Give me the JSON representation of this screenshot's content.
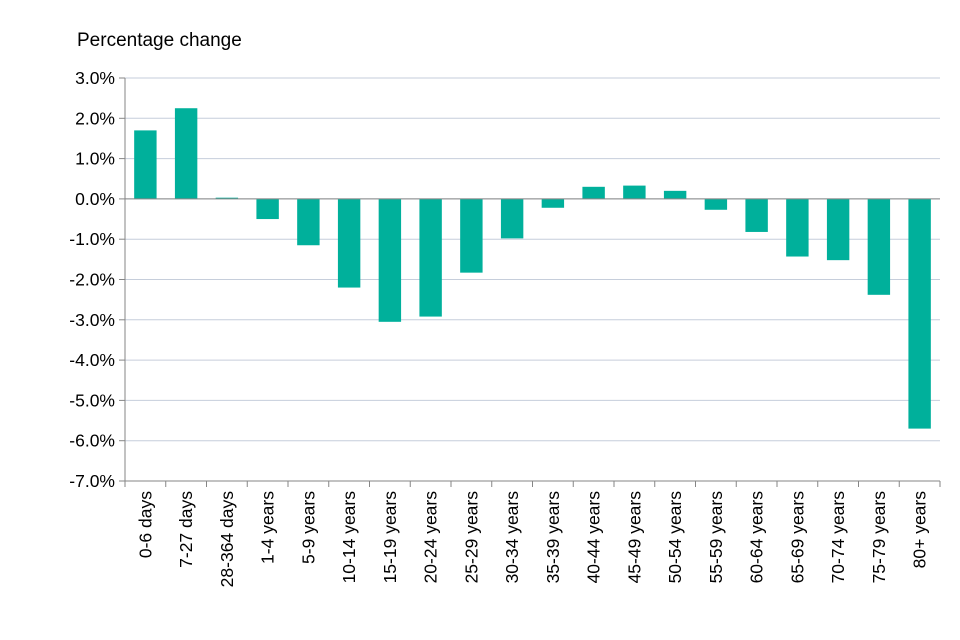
{
  "chart_data": {
    "type": "bar",
    "title": "",
    "ylabel": "Percentage change",
    "xlabel": "",
    "ylim": [
      -7.0,
      3.0
    ],
    "ytick_step": 1.0,
    "ytick_labels": [
      "3.0%",
      "2.0%",
      "1.0%",
      "0.0%",
      "-1.0%",
      "-2.0%",
      "-3.0%",
      "-4.0%",
      "-5.0%",
      "-6.0%",
      "-7.0%"
    ],
    "grid": true,
    "bar_color": "#00b09b",
    "categories": [
      "0-6 days",
      "7-27 days",
      "28-364 days",
      "1-4 years",
      "5-9 years",
      "10-14 years",
      "15-19 years",
      "20-24 years",
      "25-29 years",
      "30-34 years",
      "35-39 years",
      "40-44 years",
      "45-49 years",
      "50-54 years",
      "55-59 years",
      "60-64 years",
      "65-69 years",
      "70-74 years",
      "75-79 years",
      "80+ years"
    ],
    "values": [
      1.7,
      2.25,
      0.03,
      -0.5,
      -1.15,
      -2.2,
      -3.05,
      -2.92,
      -1.83,
      -0.98,
      -0.22,
      0.3,
      0.33,
      0.2,
      -0.27,
      -0.82,
      -1.43,
      -1.52,
      -2.38,
      -5.7
    ]
  }
}
